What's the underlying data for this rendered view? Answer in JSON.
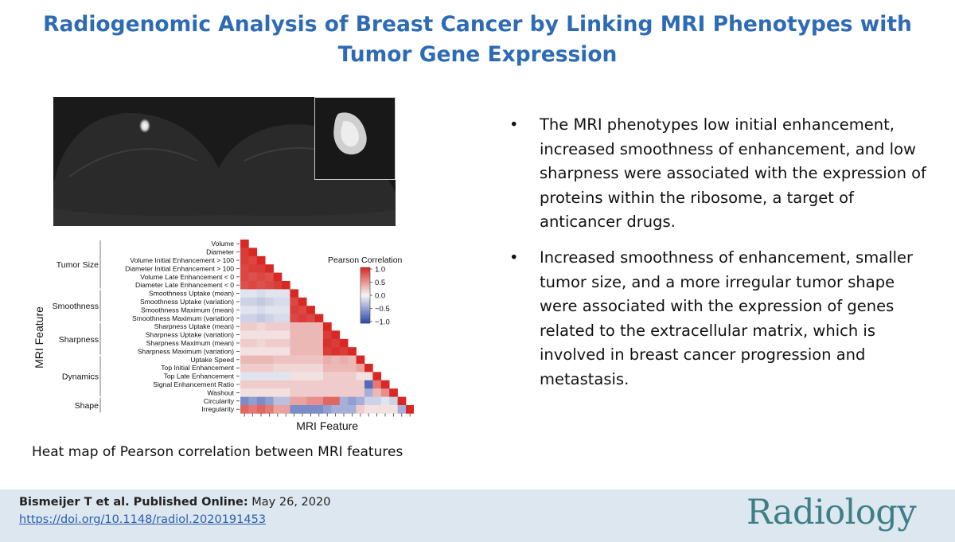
{
  "title": "Radiogenomic Analysis of Breast Cancer by Linking MRI Phenotypes with Tumor Gene Expression",
  "bullets": [
    "The MRI phenotypes low initial enhancement, increased smoothness of enhancement, and low sharpness were associated with the expression of proteins within the ribosome, a target of anticancer drugs.",
    "Increased smoothness of enhancement, smaller tumor size, and a more irregular tumor shape were associated with the expression of genes related to the extracellular matrix, which is involved in breast cancer progression and metastasis."
  ],
  "bullet_char": "•",
  "caption": "Heat map of Pearson correlation between MRI features",
  "footer": {
    "citation_bold": "Bismeijer T et al. Published Online:",
    "citation_date": " May 26, 2020",
    "doi": "https://doi.org/10.1148/radiol.2020191453",
    "logo": "Radiology"
  },
  "colors": {
    "title": "#2e6bb5",
    "footer_bg": "#dde7ef",
    "logo": "#3e7f87",
    "link": "#2a5db0"
  },
  "chart_data": {
    "type": "heatmap",
    "legend_title": "Pearson Correlation",
    "legend_ticks": [
      "1.0",
      "0.5",
      "0.0",
      "−0.5",
      "−1.0"
    ],
    "legend_range": [
      -1,
      1
    ],
    "xlabel": "MRI Feature",
    "ylabel": "MRI Feature",
    "features": [
      "Volume",
      "Diameter",
      "Volume Initial Enhancement > 100",
      "Diameter Initial Enhancement > 100",
      "Volume Late Enhancement < 0",
      "Diameter Late Enhancement < 0",
      "Smoothness Uptake (mean)",
      "Smoothness Uptake (variation)",
      "Smoothness Maximum (mean)",
      "Smoothness Maximum (variation)",
      "Sharpness Uptake (mean)",
      "Sharpness Uptake (variation)",
      "Sharpness Maximum (mean)",
      "Sharpness Maximum (variation)",
      "Uptake Speed",
      "Top Initial Enhancement",
      "Top Late Enhancement",
      "Signal Enhancement Ratio",
      "Washout",
      "Circularity",
      "Irregularity"
    ],
    "groups": [
      {
        "name": "Tumor Size",
        "start": 0,
        "end": 5
      },
      {
        "name": "Smoothness",
        "start": 6,
        "end": 9
      },
      {
        "name": "Sharpness",
        "start": 10,
        "end": 13
      },
      {
        "name": "Dynamics",
        "start": 14,
        "end": 18
      },
      {
        "name": "Shape",
        "start": 19,
        "end": 20
      }
    ],
    "matrix": [
      [
        1.0
      ],
      [
        0.9,
        1.0
      ],
      [
        0.9,
        0.85,
        1.0
      ],
      [
        0.85,
        0.9,
        0.9,
        1.0
      ],
      [
        0.85,
        0.8,
        0.85,
        0.8,
        1.0
      ],
      [
        0.8,
        0.85,
        0.8,
        0.85,
        0.9,
        1.0
      ],
      [
        -0.1,
        -0.1,
        -0.15,
        -0.1,
        -0.1,
        -0.1,
        1.0
      ],
      [
        -0.2,
        -0.2,
        -0.25,
        -0.2,
        -0.15,
        -0.15,
        0.85,
        1.0
      ],
      [
        -0.1,
        -0.1,
        -0.15,
        -0.1,
        -0.1,
        -0.1,
        0.9,
        0.85,
        1.0
      ],
      [
        -0.2,
        -0.2,
        -0.25,
        -0.2,
        -0.15,
        -0.15,
        0.85,
        0.9,
        0.85,
        1.0
      ],
      [
        0.2,
        0.2,
        0.15,
        0.2,
        0.2,
        0.2,
        0.3,
        0.3,
        0.3,
        0.3,
        1.0
      ],
      [
        0.1,
        0.1,
        0.1,
        0.1,
        0.1,
        0.1,
        0.3,
        0.3,
        0.3,
        0.3,
        0.9,
        1.0
      ],
      [
        0.2,
        0.2,
        0.15,
        0.2,
        0.2,
        0.2,
        0.3,
        0.3,
        0.3,
        0.3,
        0.95,
        0.9,
        1.0
      ],
      [
        0.1,
        0.1,
        0.1,
        0.1,
        0.1,
        0.1,
        0.3,
        0.3,
        0.3,
        0.3,
        0.9,
        0.95,
        0.9,
        1.0
      ],
      [
        0.3,
        0.3,
        0.3,
        0.3,
        0.25,
        0.25,
        0.25,
        0.25,
        0.25,
        0.25,
        0.35,
        0.3,
        0.35,
        0.3,
        1.0
      ],
      [
        0.2,
        0.2,
        0.2,
        0.2,
        0.15,
        0.15,
        0.15,
        0.15,
        0.15,
        0.15,
        0.3,
        0.3,
        0.3,
        0.3,
        0.4,
        1.0
      ],
      [
        -0.1,
        -0.1,
        -0.1,
        -0.1,
        -0.1,
        -0.1,
        0.1,
        0.1,
        0.1,
        0.1,
        0.2,
        0.2,
        0.2,
        0.2,
        0.1,
        0.1,
        1.0
      ],
      [
        0.2,
        0.2,
        0.2,
        0.2,
        0.2,
        0.2,
        0.2,
        0.2,
        0.2,
        0.2,
        0.2,
        0.2,
        0.2,
        0.2,
        0.2,
        -0.8,
        0.6,
        1.0
      ],
      [
        0.1,
        0.1,
        0.1,
        0.1,
        0.1,
        0.1,
        0.2,
        0.2,
        0.2,
        0.2,
        0.2,
        0.2,
        0.2,
        0.2,
        0.2,
        -0.4,
        0.3,
        0.5,
        1.0
      ],
      [
        -0.6,
        -0.5,
        -0.6,
        -0.5,
        -0.3,
        -0.3,
        0.4,
        0.4,
        0.5,
        0.5,
        0.7,
        0.7,
        -0.4,
        -0.5,
        -0.4,
        -0.2,
        -0.2,
        -0.1,
        -0.2,
        1.0
      ],
      [
        0.7,
        0.6,
        0.7,
        0.6,
        0.4,
        0.4,
        -0.6,
        -0.6,
        -0.6,
        -0.6,
        -0.5,
        -0.4,
        -0.4,
        -0.4,
        0.2,
        0.1,
        0.1,
        0.1,
        0.1,
        -0.4,
        1.0
      ]
    ]
  }
}
